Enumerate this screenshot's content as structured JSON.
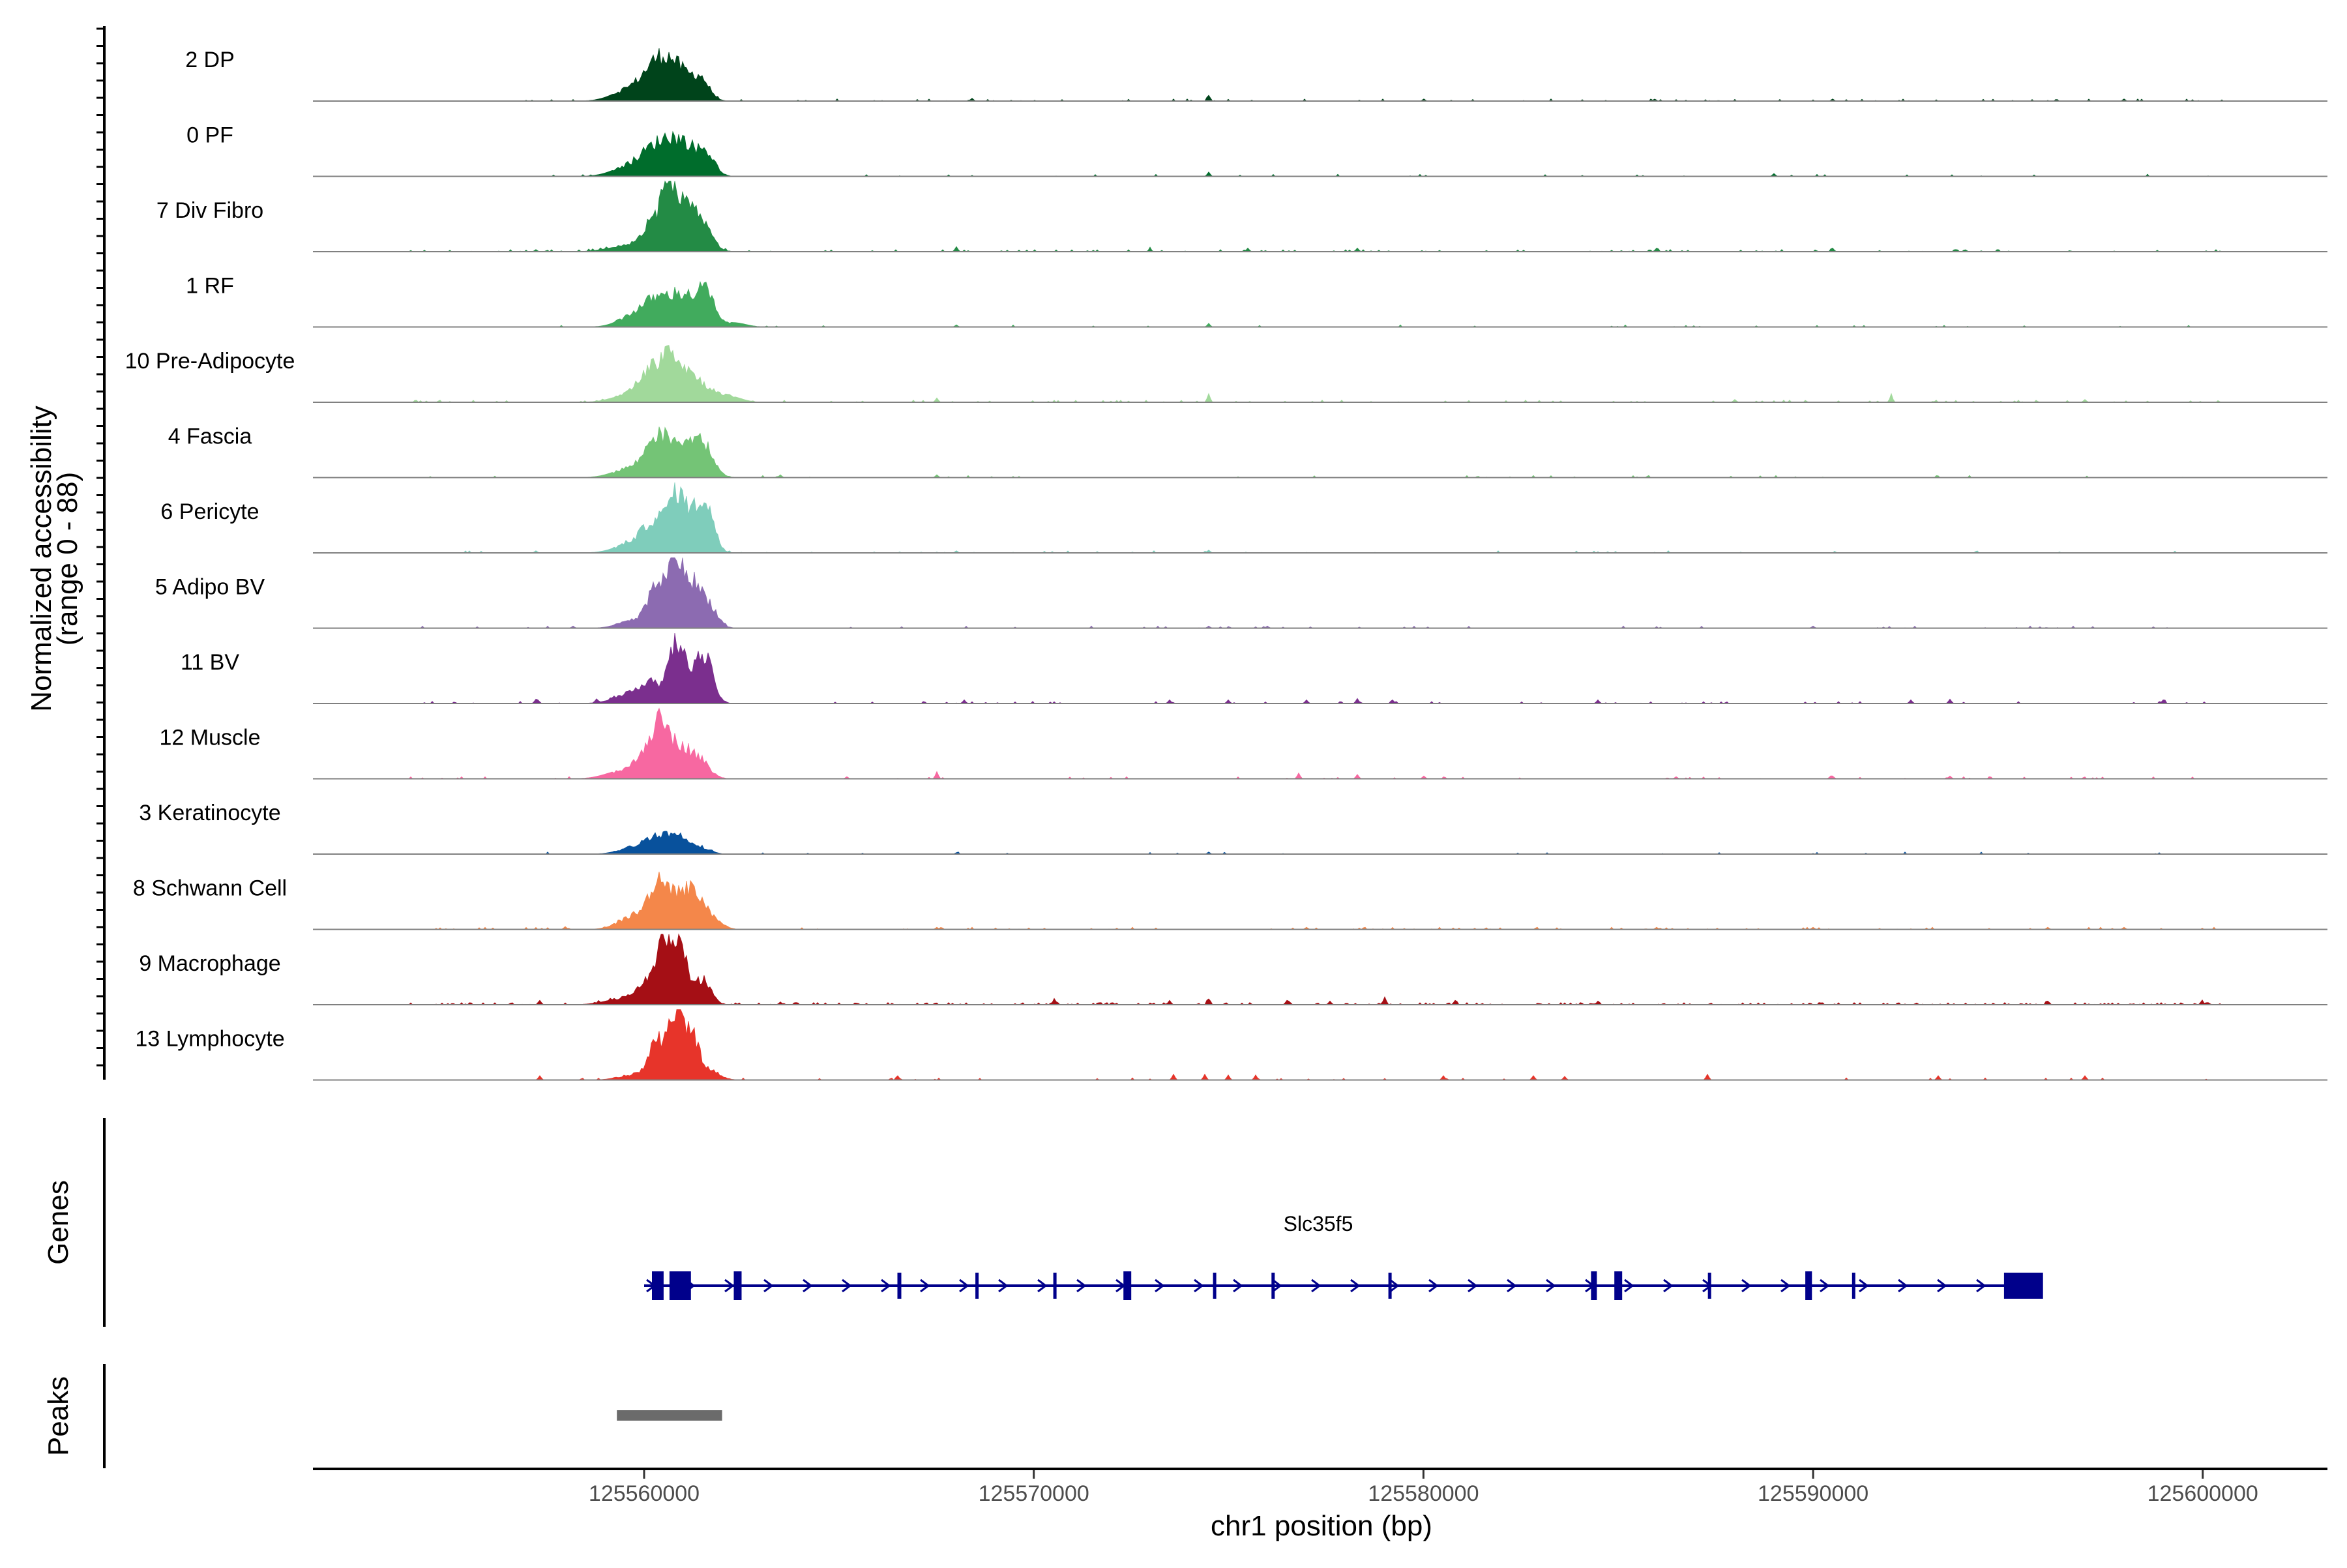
{
  "chart_data": {
    "type": "area",
    "title": "",
    "y_axis_label_line1": "Normalized accessibility",
    "y_axis_label_line2": "(range 0 - 88)",
    "ylim": [
      0,
      88
    ],
    "xlabel": "chr1 position (bp)",
    "xlim": [
      125551500,
      125603200
    ],
    "x_ticks": [
      125560000,
      125570000,
      125580000,
      125590000,
      125600000
    ],
    "x_tick_labels": [
      "125560000",
      "125570000",
      "125580000",
      "125590000",
      "125600000"
    ],
    "tracks": [
      {
        "name": "2 DP",
        "color": "#00441b",
        "peaks": [
          [
            125559700,
            9,
            450
          ],
          [
            125560200,
            14,
            280
          ],
          [
            125560550,
            19,
            260
          ],
          [
            125560950,
            16,
            260
          ],
          [
            125561450,
            15,
            220
          ]
        ],
        "blips": [
          [
            125568400,
            2
          ],
          [
            125574500,
            3
          ],
          [
            125580000,
            1.5
          ],
          [
            125590500,
            1.5
          ],
          [
            125598000,
            1.5
          ]
        ],
        "noise": 0.08
      },
      {
        "name": "0 PF",
        "color": "#006d2c",
        "peaks": [
          [
            125559700,
            8,
            450
          ],
          [
            125560200,
            13,
            280
          ],
          [
            125560650,
            19,
            260
          ],
          [
            125561100,
            18,
            260
          ],
          [
            125561600,
            15,
            220
          ]
        ],
        "blips": [
          [
            125574500,
            3
          ],
          [
            125589000,
            2
          ]
        ],
        "noise": 0.03
      },
      {
        "name": "7 Div Fibro",
        "color": "#238b45",
        "peaks": [
          [
            125559600,
            4,
            500
          ],
          [
            125560200,
            18,
            250
          ],
          [
            125560600,
            45,
            150
          ],
          [
            125561000,
            30,
            250
          ],
          [
            125561500,
            18,
            250
          ]
        ],
        "blips": [
          [
            125557200,
            1.5
          ],
          [
            125568000,
            3.5
          ],
          [
            125573000,
            2
          ],
          [
            125575500,
            2.5
          ],
          [
            125578300,
            2.5
          ],
          [
            125586000,
            2.5
          ],
          [
            125590500,
            2.5
          ]
        ],
        "noise": 0.12
      },
      {
        "name": "1 RF",
        "color": "#41ab5d",
        "peaks": [
          [
            125559800,
            9,
            400
          ],
          [
            125560300,
            14,
            280
          ],
          [
            125560800,
            16,
            260
          ],
          [
            125561200,
            14,
            260
          ],
          [
            125561600,
            22,
            200
          ],
          [
            125562300,
            3,
            300
          ]
        ],
        "blips": [
          [
            125574500,
            2.5
          ],
          [
            125568000,
            1.5
          ]
        ],
        "noise": 0.03
      },
      {
        "name": "10 Pre-Adipocyte",
        "color": "#a1d99b",
        "peaks": [
          [
            125559700,
            6,
            450
          ],
          [
            125560200,
            20,
            280
          ],
          [
            125560650,
            28,
            200
          ],
          [
            125561100,
            20,
            260
          ],
          [
            125561600,
            8,
            250
          ],
          [
            125562200,
            4,
            300
          ]
        ],
        "blips": [
          [
            125567500,
            3
          ],
          [
            125574500,
            6
          ],
          [
            125588000,
            2
          ],
          [
            125592000,
            5
          ],
          [
            125597000,
            2
          ]
        ],
        "noise": 0.08
      },
      {
        "name": "4 Fascia",
        "color": "#74c476",
        "peaks": [
          [
            125559700,
            7,
            450
          ],
          [
            125560300,
            24,
            260
          ],
          [
            125560800,
            19,
            260
          ],
          [
            125561300,
            20,
            260
          ],
          [
            125561600,
            12,
            250
          ]
        ],
        "blips": [
          [
            125563500,
            2
          ],
          [
            125567500,
            2
          ]
        ],
        "noise": 0.03
      },
      {
        "name": "6 Pericyte",
        "color": "#7fcdbb",
        "peaks": [
          [
            125559800,
            8,
            450
          ],
          [
            125560300,
            18,
            280
          ],
          [
            125560800,
            32,
            200
          ],
          [
            125561200,
            23,
            260
          ],
          [
            125561600,
            29,
            200
          ]
        ],
        "blips": [
          [
            125557200,
            1.5
          ],
          [
            125568000,
            1.5
          ],
          [
            125574500,
            2
          ]
        ],
        "noise": 0.05
      },
      {
        "name": "5 Adipo BV",
        "color": "#8c6bb1",
        "peaks": [
          [
            125559800,
            6,
            400
          ],
          [
            125560350,
            29,
            220
          ],
          [
            125560800,
            42,
            170
          ],
          [
            125561200,
            30,
            220
          ],
          [
            125561650,
            16,
            220
          ]
        ],
        "blips": [
          [
            125558200,
            1.5
          ],
          [
            125574500,
            1.5
          ],
          [
            125576000,
            1.5
          ],
          [
            125590000,
            1.5
          ]
        ],
        "noise": 0.05
      },
      {
        "name": "11 BV",
        "color": "#7b2f8e",
        "peaks": [
          [
            125559700,
            6,
            450
          ],
          [
            125560200,
            13,
            280
          ],
          [
            125560800,
            34,
            170
          ],
          [
            125561200,
            22,
            260
          ],
          [
            125561600,
            24,
            200
          ]
        ],
        "blips": [
          [
            125557200,
            3
          ],
          [
            125558800,
            2.5
          ],
          [
            125568200,
            2.5
          ],
          [
            125573500,
            2.5
          ],
          [
            125575000,
            2.5
          ],
          [
            125577000,
            2.5
          ],
          [
            125578300,
            3.5
          ],
          [
            125579200,
            2.5
          ],
          [
            125584500,
            2.5
          ],
          [
            125592500,
            2.5
          ],
          [
            125593500,
            3
          ],
          [
            125599000,
            2.5
          ]
        ],
        "noise": 0.05
      },
      {
        "name": "12 Muscle",
        "color": "#f768a1",
        "peaks": [
          [
            125559500,
            6,
            450
          ],
          [
            125560100,
            18,
            250
          ],
          [
            125560450,
            30,
            200
          ],
          [
            125560900,
            20,
            250
          ],
          [
            125561400,
            13,
            260
          ]
        ],
        "blips": [
          [
            125565200,
            1.5
          ],
          [
            125567500,
            5
          ],
          [
            125576800,
            4
          ],
          [
            125578300,
            3
          ],
          [
            125580000,
            2
          ],
          [
            125586500,
            1.5
          ],
          [
            125590500,
            2
          ],
          [
            125593500,
            2
          ]
        ],
        "noise": 0.05
      },
      {
        "name": "3 Keratinocyte",
        "color": "#08519c",
        "peaks": [
          [
            125559800,
            5,
            400
          ],
          [
            125560300,
            10,
            250
          ],
          [
            125560800,
            11,
            250
          ],
          [
            125561300,
            6,
            300
          ]
        ],
        "blips": [
          [
            125574500,
            1.5
          ],
          [
            125568000,
            1
          ]
        ],
        "noise": 0.02
      },
      {
        "name": "8 Schwann Cell",
        "color": "#f4874a",
        "peaks": [
          [
            125559800,
            10,
            400
          ],
          [
            125560350,
            28,
            220
          ],
          [
            125560800,
            21,
            240
          ],
          [
            125561250,
            23,
            220
          ],
          [
            125561700,
            9,
            250
          ]
        ],
        "blips": [
          [
            125558000,
            2
          ],
          [
            125567500,
            1.5
          ],
          [
            125577000,
            1.5
          ],
          [
            125586000,
            1.5
          ],
          [
            125590000,
            1.5
          ],
          [
            125596000,
            1.5
          ],
          [
            125598000,
            1.5
          ]
        ],
        "noise": 0.1
      },
      {
        "name": "9 Macrophage",
        "color": "#a50f15",
        "peaks": [
          [
            125559600,
            5,
            500
          ],
          [
            125560200,
            17,
            250
          ],
          [
            125560550,
            42,
            160
          ],
          [
            125560950,
            38,
            170
          ],
          [
            125561500,
            18,
            200
          ]
        ],
        "blips": [
          [
            125557300,
            3
          ],
          [
            125563500,
            2
          ],
          [
            125570500,
            3
          ],
          [
            125573500,
            3
          ],
          [
            125574500,
            4
          ],
          [
            125576500,
            3
          ],
          [
            125577600,
            2.5
          ],
          [
            125579000,
            4
          ],
          [
            125580800,
            3
          ],
          [
            125584500,
            2.5
          ],
          [
            125596000,
            2.5
          ],
          [
            125600000,
            2.5
          ]
        ],
        "noise": 0.25
      },
      {
        "name": "13 Lymphocyte",
        "color": "#e7342a",
        "peaks": [
          [
            125559800,
            4,
            400
          ],
          [
            125560350,
            26,
            200
          ],
          [
            125560800,
            42,
            160
          ],
          [
            125561200,
            32,
            200
          ],
          [
            125561700,
            6,
            250
          ]
        ],
        "blips": [
          [
            125557300,
            3
          ],
          [
            125566500,
            3
          ],
          [
            125573600,
            4
          ],
          [
            125574400,
            4
          ],
          [
            125575000,
            3.5
          ],
          [
            125575700,
            3.5
          ],
          [
            125580500,
            3
          ],
          [
            125582800,
            3
          ],
          [
            125583600,
            2.5
          ],
          [
            125587300,
            4
          ],
          [
            125593200,
            3
          ],
          [
            125597000,
            3
          ]
        ],
        "noise": 0.04
      }
    ],
    "genes_label": "Genes",
    "gene": {
      "name": "Slc35f5",
      "color": "#00008b",
      "start": 125560000,
      "end": 125595600,
      "exons": [
        [
          125560200,
          125560500
        ],
        [
          125560650,
          125561200
        ],
        [
          125562300,
          125562500
        ],
        [
          125566500,
          125566600
        ],
        [
          125568500,
          125568570
        ],
        [
          125570500,
          125570570
        ],
        [
          125572300,
          125572500
        ],
        [
          125574600,
          125574680
        ],
        [
          125576100,
          125576170
        ],
        [
          125579100,
          125579170
        ],
        [
          125584300,
          125584450
        ],
        [
          125584900,
          125585100
        ],
        [
          125587300,
          125587370
        ],
        [
          125589800,
          125589970
        ],
        [
          125591000,
          125591080
        ],
        [
          125594900,
          125595900
        ]
      ]
    },
    "peaks_label": "Peaks",
    "peak_regions": [
      [
        125559300,
        125562000
      ]
    ]
  }
}
